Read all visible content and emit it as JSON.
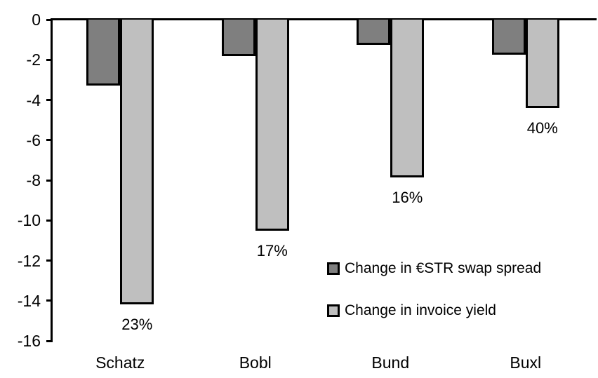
{
  "chart_data": {
    "type": "bar",
    "orientation": "vertical-negative",
    "categories": [
      "Schatz",
      "Bobl",
      "Bund",
      "Buxl"
    ],
    "series": [
      {
        "name": "Change in €STR swap spread",
        "color": "#7f7f7f",
        "values": [
          -3.3,
          -1.8,
          -1.25,
          -1.75
        ]
      },
      {
        "name": "Change in invoice yield",
        "color": "#bfbfbf",
        "values": [
          -14.2,
          -10.5,
          -7.85,
          -4.4
        ]
      }
    ],
    "bar_labels": {
      "attached_to_series": "Change in invoice yield",
      "values": [
        "23%",
        "17%",
        "16%",
        "40%"
      ]
    },
    "title": "",
    "xlabel": "",
    "ylabel": "",
    "ylim": [
      -16,
      0
    ],
    "yticks": [
      0,
      -2,
      -4,
      -6,
      -8,
      -10,
      -12,
      -14,
      -16
    ],
    "grid": false,
    "legend_position": "inside-lower-right",
    "bar_border_color": "#000000",
    "axis_color": "#000000",
    "background_color": "#ffffff"
  }
}
